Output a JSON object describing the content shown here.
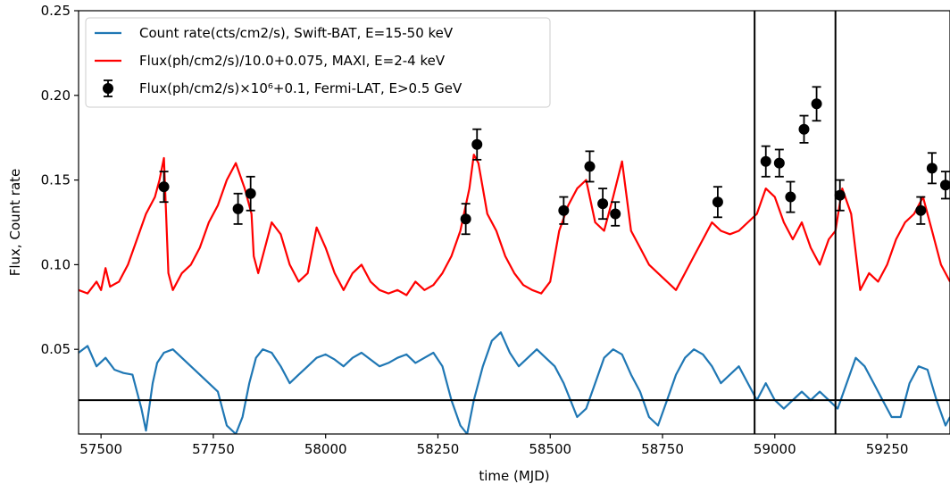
{
  "chart_data": {
    "type": "line",
    "xlabel": "time (MJD)",
    "ylabel": "Flux, Count rate",
    "xlim": [
      57450,
      59390
    ],
    "ylim": [
      0.0,
      0.25
    ],
    "xticks": [
      57500,
      57750,
      58000,
      58250,
      58500,
      58750,
      59000,
      59250
    ],
    "yticks": [
      0.05,
      0.1,
      0.15,
      0.2,
      0.25
    ],
    "ytick_labels": [
      "0.05",
      "0.10",
      "0.15",
      "0.20",
      "0.25"
    ],
    "grid": false,
    "legend_position": "top-left",
    "legend": [
      {
        "label": "Count rate(cts/cm2/s), Swift-BAT, E=15-50 keV",
        "kind": "line",
        "color": "#1f77b4"
      },
      {
        "label": "Flux(ph/cm2/s)/10.0+0.075, MAXI, E=2-4 keV",
        "kind": "line",
        "color": "#ff0000"
      },
      {
        "label": "Flux(ph/cm2/s)×10⁶+0.1, Fermi-LAT, E>0.5 GeV",
        "kind": "errorbar",
        "color": "#000000"
      }
    ],
    "reference_lines": {
      "horizontal_y": 0.02,
      "vertical_x": [
        58955,
        59135
      ]
    },
    "series": [
      {
        "name": "Count rate(cts/cm2/s), Swift-BAT, E=15-50 keV",
        "color": "#1f77b4",
        "x": [
          57450,
          57470,
          57490,
          57510,
          57530,
          57550,
          57570,
          57590,
          57600,
          57615,
          57625,
          57640,
          57660,
          57680,
          57700,
          57720,
          57740,
          57760,
          57780,
          57800,
          57815,
          57830,
          57845,
          57860,
          57880,
          57900,
          57920,
          57940,
          57960,
          57980,
          58000,
          58020,
          58040,
          58060,
          58080,
          58100,
          58120,
          58140,
          58160,
          58180,
          58200,
          58220,
          58240,
          58260,
          58280,
          58300,
          58315,
          58330,
          58350,
          58370,
          58390,
          58410,
          58430,
          58450,
          58470,
          58490,
          58510,
          58530,
          58545,
          58560,
          58580,
          58600,
          58620,
          58640,
          58660,
          58680,
          58700,
          58720,
          58740,
          58760,
          58780,
          58800,
          58820,
          58840,
          58860,
          58880,
          58900,
          58920,
          58940,
          58960,
          58980,
          59000,
          59020,
          59040,
          59060,
          59080,
          59100,
          59120,
          59140,
          59160,
          59180,
          59200,
          59220,
          59240,
          59260,
          59280,
          59300,
          59320,
          59340,
          59360,
          59380,
          59390
        ],
        "values": [
          0.048,
          0.052,
          0.04,
          0.045,
          0.038,
          0.036,
          0.035,
          0.015,
          0.002,
          0.03,
          0.042,
          0.048,
          0.05,
          0.045,
          0.04,
          0.035,
          0.03,
          0.025,
          0.005,
          0.0,
          0.01,
          0.03,
          0.045,
          0.05,
          0.048,
          0.04,
          0.03,
          0.035,
          0.04,
          0.045,
          0.047,
          0.044,
          0.04,
          0.045,
          0.048,
          0.044,
          0.04,
          0.042,
          0.045,
          0.047,
          0.042,
          0.045,
          0.048,
          0.04,
          0.02,
          0.005,
          0.0,
          0.02,
          0.04,
          0.055,
          0.06,
          0.048,
          0.04,
          0.045,
          0.05,
          0.045,
          0.04,
          0.03,
          0.02,
          0.01,
          0.015,
          0.03,
          0.045,
          0.05,
          0.047,
          0.035,
          0.025,
          0.01,
          0.005,
          0.02,
          0.035,
          0.045,
          0.05,
          0.047,
          0.04,
          0.03,
          0.035,
          0.04,
          0.03,
          0.02,
          0.03,
          0.02,
          0.015,
          0.02,
          0.025,
          0.02,
          0.025,
          0.02,
          0.015,
          0.03,
          0.045,
          0.04,
          0.03,
          0.02,
          0.01,
          0.01,
          0.03,
          0.04,
          0.038,
          0.02,
          0.005,
          0.01
        ]
      },
      {
        "name": "Flux(ph/cm2/s)/10.0+0.075, MAXI, E=2-4 keV",
        "color": "#ff0000",
        "x": [
          57450,
          57470,
          57490,
          57500,
          57510,
          57520,
          57540,
          57560,
          57580,
          57600,
          57620,
          57630,
          57640,
          57650,
          57660,
          57680,
          57700,
          57720,
          57740,
          57760,
          57780,
          57800,
          57820,
          57835,
          57840,
          57850,
          57880,
          57900,
          57920,
          57940,
          57960,
          57980,
          58000,
          58020,
          58040,
          58060,
          58080,
          58100,
          58120,
          58140,
          58160,
          58180,
          58200,
          58220,
          58240,
          58260,
          58280,
          58300,
          58320,
          58330,
          58340,
          58360,
          58380,
          58400,
          58420,
          58440,
          58460,
          58480,
          58500,
          58520,
          58540,
          58560,
          58580,
          58600,
          58620,
          58640,
          58660,
          58680,
          58700,
          58720,
          58740,
          58760,
          58780,
          58800,
          58820,
          58840,
          58860,
          58880,
          58900,
          58920,
          58940,
          58960,
          58980,
          59000,
          59020,
          59040,
          59060,
          59080,
          59100,
          59120,
          59135,
          59150,
          59170,
          59190,
          59210,
          59230,
          59250,
          59270,
          59290,
          59310,
          59330,
          59350,
          59370,
          59390
        ],
        "values": [
          0.085,
          0.083,
          0.09,
          0.085,
          0.098,
          0.087,
          0.09,
          0.1,
          0.115,
          0.13,
          0.14,
          0.15,
          0.163,
          0.095,
          0.085,
          0.095,
          0.1,
          0.11,
          0.125,
          0.135,
          0.15,
          0.16,
          0.145,
          0.13,
          0.105,
          0.095,
          0.125,
          0.118,
          0.1,
          0.09,
          0.095,
          0.122,
          0.11,
          0.095,
          0.085,
          0.095,
          0.1,
          0.09,
          0.085,
          0.083,
          0.085,
          0.082,
          0.09,
          0.085,
          0.088,
          0.095,
          0.105,
          0.12,
          0.145,
          0.165,
          0.16,
          0.13,
          0.12,
          0.105,
          0.095,
          0.088,
          0.085,
          0.083,
          0.09,
          0.12,
          0.135,
          0.145,
          0.15,
          0.125,
          0.12,
          0.14,
          0.161,
          0.12,
          0.11,
          0.1,
          0.095,
          0.09,
          0.085,
          0.095,
          0.105,
          0.115,
          0.125,
          0.12,
          0.118,
          0.12,
          0.125,
          0.13,
          0.145,
          0.14,
          0.125,
          0.115,
          0.125,
          0.11,
          0.1,
          0.115,
          0.12,
          0.145,
          0.13,
          0.085,
          0.095,
          0.09,
          0.1,
          0.115,
          0.125,
          0.13,
          0.14,
          0.12,
          0.1,
          0.09
        ]
      },
      {
        "name": "Flux(ph/cm2/s)×10⁶+0.1, Fermi-LAT, E>0.5 GeV",
        "color": "#000000",
        "type": "errorbar",
        "points": [
          {
            "x": 57640,
            "y": 0.146,
            "err": 0.009
          },
          {
            "x": 57805,
            "y": 0.133,
            "err": 0.009
          },
          {
            "x": 57833,
            "y": 0.142,
            "err": 0.01
          },
          {
            "x": 58312,
            "y": 0.127,
            "err": 0.009
          },
          {
            "x": 58337,
            "y": 0.171,
            "err": 0.009
          },
          {
            "x": 58530,
            "y": 0.132,
            "err": 0.008
          },
          {
            "x": 58588,
            "y": 0.158,
            "err": 0.009
          },
          {
            "x": 58617,
            "y": 0.136,
            "err": 0.009
          },
          {
            "x": 58645,
            "y": 0.13,
            "err": 0.007
          },
          {
            "x": 58873,
            "y": 0.137,
            "err": 0.009
          },
          {
            "x": 58980,
            "y": 0.161,
            "err": 0.009
          },
          {
            "x": 59010,
            "y": 0.16,
            "err": 0.008
          },
          {
            "x": 59035,
            "y": 0.14,
            "err": 0.009
          },
          {
            "x": 59065,
            "y": 0.18,
            "err": 0.008
          },
          {
            "x": 59093,
            "y": 0.195,
            "err": 0.01
          },
          {
            "x": 59145,
            "y": 0.141,
            "err": 0.009
          },
          {
            "x": 59325,
            "y": 0.132,
            "err": 0.008
          },
          {
            "x": 59350,
            "y": 0.157,
            "err": 0.009
          },
          {
            "x": 59380,
            "y": 0.147,
            "err": 0.008
          }
        ]
      }
    ]
  }
}
